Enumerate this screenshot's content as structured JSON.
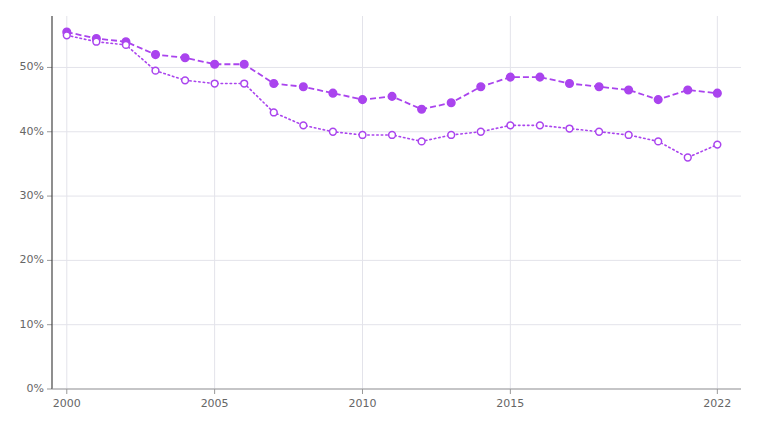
{
  "chart_data": {
    "type": "line",
    "x": [
      2000,
      2001,
      2002,
      2003,
      2004,
      2005,
      2006,
      2007,
      2008,
      2009,
      2010,
      2011,
      2012,
      2013,
      2014,
      2015,
      2016,
      2017,
      2018,
      2019,
      2020,
      2021,
      2022
    ],
    "series": [
      {
        "color": "#aa44ee",
        "marker": "circle",
        "line_style": "dashed",
        "values": [
          55.5,
          54.5,
          54.0,
          52.0,
          51.5,
          50.5,
          50.5,
          47.5,
          47.0,
          46.0,
          45.0,
          45.5,
          43.5,
          44.5,
          47.0,
          48.5,
          48.5,
          47.5,
          47.0,
          46.5,
          45.0,
          46.5,
          46.0
        ]
      },
      {
        "color": "#aa44ee",
        "marker": "open-circle",
        "line_style": "dotted",
        "values": [
          55.0,
          54.0,
          53.5,
          49.5,
          48.0,
          47.5,
          47.5,
          43.0,
          41.0,
          40.0,
          39.5,
          39.5,
          38.5,
          39.5,
          40.0,
          41.0,
          41.0,
          40.5,
          40.0,
          39.5,
          38.5,
          36.0,
          38.0
        ]
      }
    ],
    "xlim": [
      1999.5,
      2022.8
    ],
    "xticks": [
      2000,
      2005,
      2010,
      2015,
      2022
    ],
    "ylim": [
      0,
      58
    ],
    "yticks": [
      {
        "value": 0,
        "label": "0%"
      },
      {
        "value": 10,
        "label": "10%"
      },
      {
        "value": 20,
        "label": "20%"
      },
      {
        "value": 30,
        "label": "30%"
      },
      {
        "value": 40,
        "label": "40%"
      },
      {
        "value": 50,
        "label": "50%"
      }
    ],
    "grid": true
  }
}
